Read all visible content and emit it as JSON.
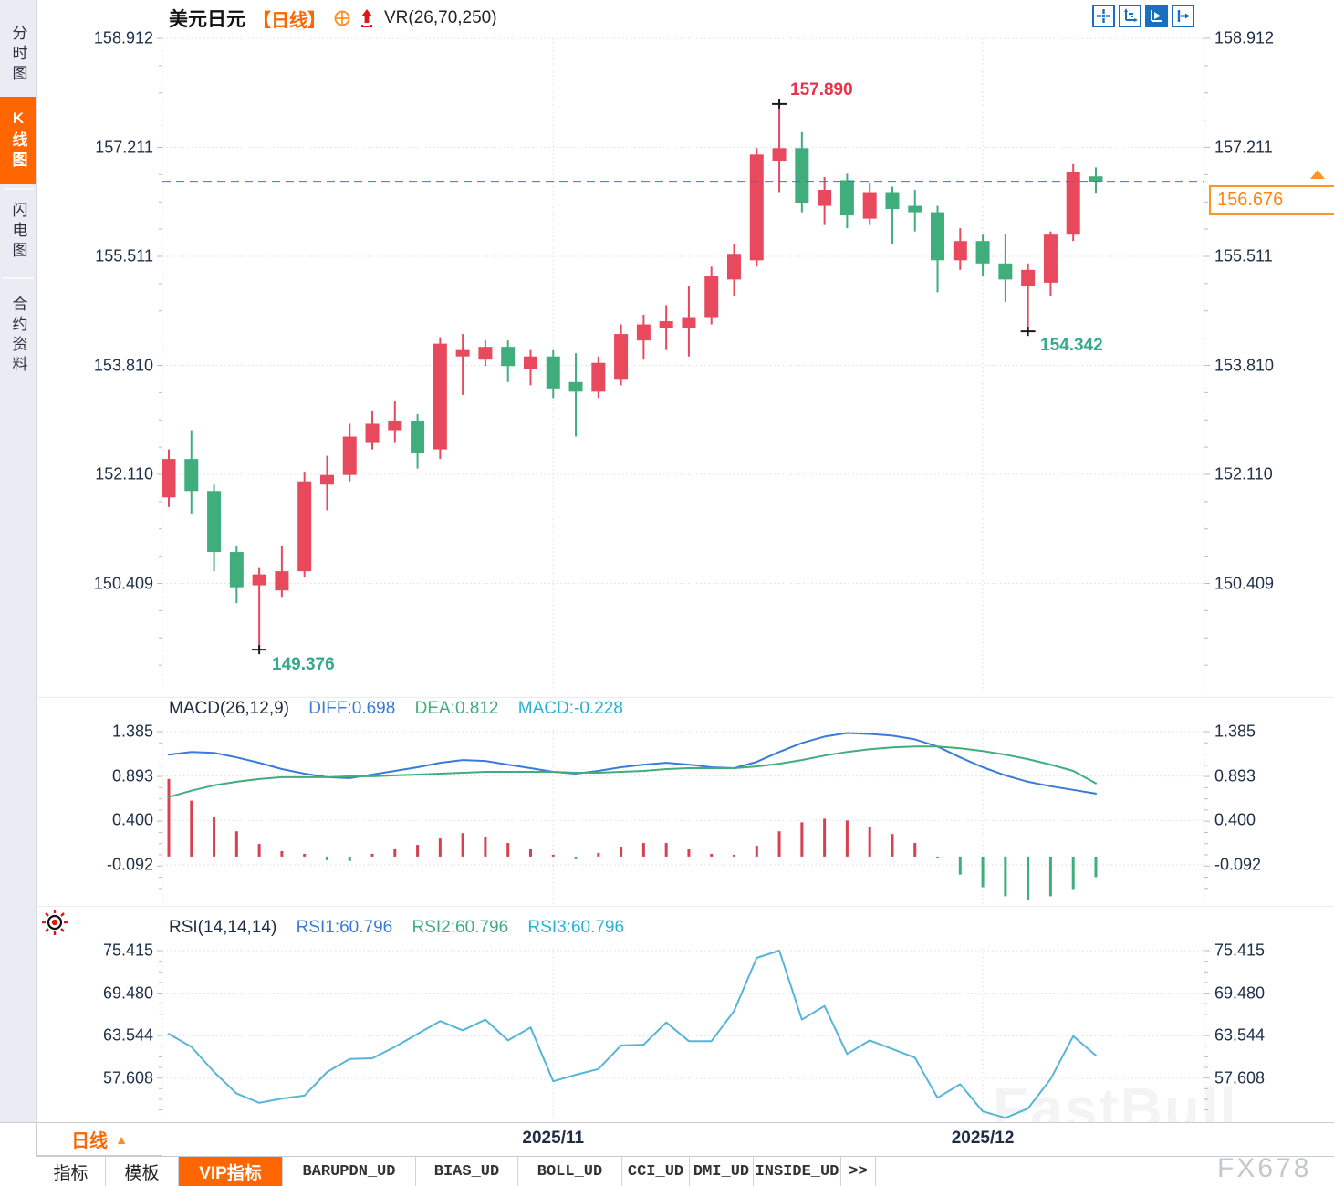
{
  "title": {
    "symbol": "美元日元",
    "period_tag": "【日线】",
    "indicator": "VR(26,70,250)"
  },
  "sidebar": {
    "tabs": [
      {
        "label": "分时图",
        "active": false
      },
      {
        "label": "K线图",
        "active": true
      },
      {
        "label": "闪电图",
        "active": false
      },
      {
        "label": "合约资料",
        "active": false
      }
    ]
  },
  "toolbar_icons": [
    "crosshair-icon",
    "axis-zoom-icon",
    "pointer-tool-icon",
    "scroll-right-icon"
  ],
  "price_panel": {
    "axis_labels": [
      "158.912",
      "157.211",
      "155.511",
      "153.810",
      "152.110",
      "150.409"
    ],
    "current_price": "156.676",
    "annotation_high": "157.890",
    "annotation_low": "149.376",
    "annotation_swing_low": "154.342"
  },
  "macd_panel": {
    "name": "MACD(26,12,9)",
    "diff_label": "DIFF:0.698",
    "dea_label": "DEA:0.812",
    "macd_label": "MACD:-0.228",
    "axis_labels": [
      "1.385",
      "0.893",
      "0.400",
      "-0.092"
    ]
  },
  "rsi_panel": {
    "name": "RSI(14,14,14)",
    "rsi1_label": "RSI1:60.796",
    "rsi2_label": "RSI2:60.796",
    "rsi3_label": "RSI3:60.796",
    "axis_labels": [
      "75.415",
      "69.480",
      "63.544",
      "57.608"
    ]
  },
  "xaxis": {
    "period_selector": "日线",
    "period_arrow": "▲",
    "month_labels": [
      {
        "label": "2025/11",
        "candle_index": 17
      },
      {
        "label": "2025/12",
        "candle_index": 36
      }
    ]
  },
  "bottom_tabs": [
    {
      "label": "指标",
      "active": false
    },
    {
      "label": "模板",
      "active": false
    },
    {
      "label": "VIP指标",
      "active": true
    },
    {
      "label": "BARUPDN_UD",
      "active": false
    },
    {
      "label": "BIAS_UD",
      "active": false
    },
    {
      "label": "BOLL_UD",
      "active": false
    },
    {
      "label": "CCI_UD",
      "active": false
    },
    {
      "label": "DMI_UD",
      "active": false
    },
    {
      "label": "INSIDE_UD",
      "active": false
    },
    {
      "label": ">>",
      "active": false
    }
  ],
  "watermarks": {
    "big": "FastBull",
    "small": "FX678"
  },
  "colors": {
    "up": "#e8495d",
    "down": "#3fae7c",
    "accent": "#ff6600",
    "diff_line": "#3a7bd5",
    "dea_line": "#3fae7c",
    "rsi_line": "#55b5d9",
    "hist_up": "#d9404f",
    "hist_down": "#3fae7c",
    "current_line": "#1b82e8",
    "grid": "#dcdde6",
    "axis_text": "#20304a"
  },
  "chart_data": [
    {
      "type": "candlestick",
      "title": "美元日元 日线 (USD/JPY daily)",
      "ylim": [
        149.0,
        158.912
      ],
      "yticks": [
        158.912,
        157.211,
        155.511,
        153.81,
        152.11,
        150.409
      ],
      "current_price": 156.676,
      "high_marker": {
        "value": 157.89,
        "index": 27
      },
      "low_marker": {
        "value": 149.376,
        "index": 4
      },
      "swing_low_marker": {
        "value": 154.342,
        "index": 38
      },
      "x_gridlines": [
        {
          "label": "2025/11",
          "index": 17
        },
        {
          "label": "2025/12",
          "index": 36
        }
      ],
      "open": [
        151.75,
        152.35,
        151.85,
        150.9,
        150.38,
        150.3,
        150.6,
        151.95,
        152.1,
        152.6,
        152.8,
        152.95,
        152.5,
        153.95,
        153.9,
        154.1,
        153.75,
        153.95,
        153.55,
        153.4,
        153.6,
        154.2,
        154.4,
        154.4,
        154.55,
        155.15,
        155.45,
        157.0,
        157.2,
        156.3,
        156.7,
        156.1,
        156.5,
        156.3,
        156.2,
        155.45,
        155.75,
        155.4,
        155.05,
        155.1,
        155.85,
        156.76
      ],
      "high": [
        152.5,
        152.8,
        151.95,
        151.0,
        150.65,
        151.0,
        152.15,
        152.4,
        152.9,
        153.1,
        153.25,
        153.05,
        154.25,
        154.3,
        154.2,
        154.2,
        154.05,
        154.05,
        154.0,
        153.95,
        154.45,
        154.6,
        154.75,
        155.05,
        155.35,
        155.7,
        157.2,
        157.89,
        157.45,
        156.75,
        156.8,
        156.65,
        156.6,
        156.55,
        156.3,
        155.95,
        155.85,
        155.85,
        155.4,
        155.9,
        156.95,
        156.9
      ],
      "low": [
        151.6,
        151.5,
        150.6,
        150.1,
        149.376,
        150.2,
        150.5,
        151.55,
        152.0,
        152.5,
        152.6,
        152.2,
        152.35,
        153.35,
        153.8,
        153.55,
        153.5,
        153.3,
        152.7,
        153.3,
        153.5,
        153.9,
        154.05,
        153.95,
        154.45,
        154.9,
        155.35,
        156.5,
        156.2,
        156.0,
        155.95,
        156.0,
        155.7,
        155.9,
        154.95,
        155.3,
        155.2,
        154.8,
        154.342,
        154.9,
        155.75,
        156.49
      ],
      "close": [
        152.35,
        151.85,
        150.9,
        150.35,
        150.55,
        150.6,
        152.0,
        152.1,
        152.7,
        152.9,
        152.95,
        152.45,
        154.15,
        154.05,
        154.1,
        153.8,
        153.95,
        153.45,
        153.4,
        153.85,
        154.3,
        154.45,
        154.5,
        154.55,
        155.2,
        155.55,
        157.1,
        157.2,
        156.35,
        156.55,
        156.15,
        156.5,
        156.25,
        156.2,
        155.45,
        155.75,
        155.4,
        155.15,
        155.3,
        155.85,
        156.83,
        156.676
      ]
    },
    {
      "type": "line+bar",
      "title": "MACD(26,12,9)",
      "yticks": [
        1.385,
        0.893,
        0.4,
        -0.092
      ],
      "series": [
        {
          "name": "DIFF",
          "current": 0.698,
          "values": [
            1.13,
            1.16,
            1.15,
            1.1,
            1.04,
            0.97,
            0.92,
            0.88,
            0.87,
            0.91,
            0.95,
            0.99,
            1.04,
            1.07,
            1.06,
            1.02,
            0.98,
            0.94,
            0.92,
            0.95,
            0.99,
            1.02,
            1.04,
            1.02,
            0.99,
            0.98,
            1.05,
            1.16,
            1.26,
            1.33,
            1.37,
            1.36,
            1.34,
            1.3,
            1.22,
            1.1,
            0.99,
            0.9,
            0.83,
            0.78,
            0.74,
            0.698
          ]
        },
        {
          "name": "DEA",
          "current": 0.812,
          "values": [
            0.66,
            0.73,
            0.79,
            0.83,
            0.86,
            0.88,
            0.88,
            0.88,
            0.89,
            0.89,
            0.9,
            0.91,
            0.92,
            0.93,
            0.94,
            0.94,
            0.94,
            0.94,
            0.93,
            0.93,
            0.94,
            0.95,
            0.97,
            0.98,
            0.98,
            0.98,
            1.0,
            1.03,
            1.07,
            1.12,
            1.16,
            1.19,
            1.21,
            1.22,
            1.22,
            1.2,
            1.17,
            1.13,
            1.08,
            1.02,
            0.95,
            0.812
          ]
        },
        {
          "name": "MACD",
          "current": -0.228,
          "values": [
            0.86,
            0.62,
            0.44,
            0.28,
            0.14,
            0.06,
            0.03,
            -0.04,
            -0.05,
            0.03,
            0.08,
            0.13,
            0.2,
            0.26,
            0.22,
            0.15,
            0.08,
            0.02,
            -0.03,
            0.04,
            0.11,
            0.15,
            0.15,
            0.08,
            0.03,
            0.02,
            0.12,
            0.28,
            0.38,
            0.42,
            0.4,
            0.33,
            0.25,
            0.15,
            -0.02,
            -0.2,
            -0.34,
            -0.44,
            -0.48,
            -0.44,
            -0.36,
            -0.228
          ]
        }
      ]
    },
    {
      "type": "line",
      "title": "RSI(14,14,14)",
      "yticks": [
        75.415,
        69.48,
        63.544,
        57.608
      ],
      "series": [
        {
          "name": "RSI1",
          "current": 60.796,
          "values": [
            63.8,
            62.0,
            58.5,
            55.5,
            54.2,
            54.8,
            55.2,
            58.5,
            60.3,
            60.4,
            62.0,
            63.8,
            65.6,
            64.3,
            65.8,
            62.9,
            64.7,
            57.2,
            58.1,
            58.9,
            62.2,
            62.3,
            65.4,
            62.8,
            62.8,
            67.0,
            74.4,
            75.415,
            65.8,
            67.7,
            61.0,
            62.9,
            61.7,
            60.5,
            54.9,
            56.8,
            53.0,
            52.1,
            53.4,
            57.5,
            63.5,
            60.796
          ]
        }
      ]
    }
  ]
}
